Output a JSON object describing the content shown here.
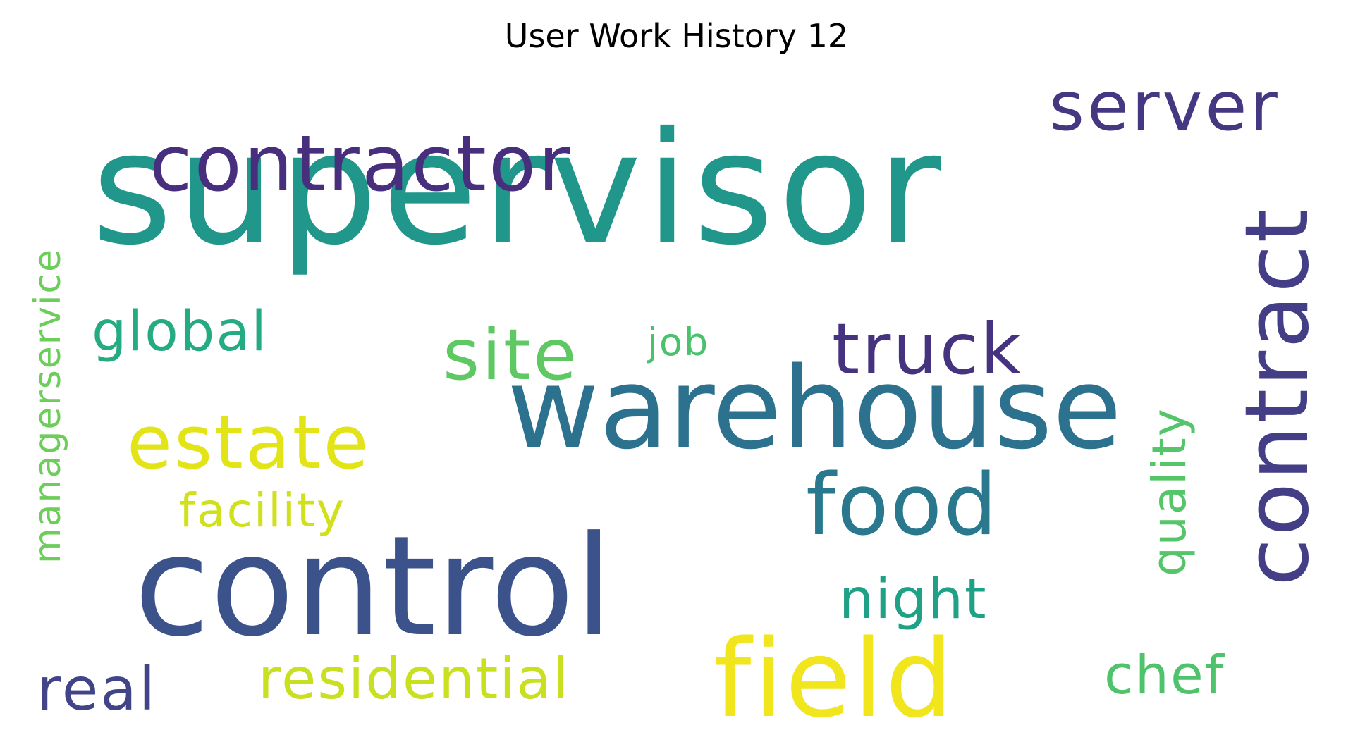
{
  "title": "User Work History 12",
  "words": [
    {
      "text": "supervisor",
      "color": "#21968b"
    },
    {
      "text": "contractor",
      "color": "#472f7d"
    },
    {
      "text": "server",
      "color": "#453781"
    },
    {
      "text": "contract",
      "color": "#433e85"
    },
    {
      "text": "warehouse",
      "color": "#2c728e"
    },
    {
      "text": "control",
      "color": "#3b528b"
    },
    {
      "text": "field",
      "color": "#f1e51d"
    },
    {
      "text": "estate",
      "color": "#e2e418"
    },
    {
      "text": "site",
      "color": "#5ec962"
    },
    {
      "text": "truck",
      "color": "#46337f"
    },
    {
      "text": "global",
      "color": "#25ab82"
    },
    {
      "text": "job",
      "color": "#4ac16d"
    },
    {
      "text": "food",
      "color": "#2a788e"
    },
    {
      "text": "quality",
      "color": "#54c568"
    },
    {
      "text": "managerservice",
      "color": "#6ccd5a"
    },
    {
      "text": "facility",
      "color": "#d0e11c"
    },
    {
      "text": "night",
      "color": "#1fa187"
    },
    {
      "text": "residential",
      "color": "#c8e020"
    },
    {
      "text": "real",
      "color": "#414487"
    },
    {
      "text": "chef",
      "color": "#4ec36b"
    }
  ]
}
